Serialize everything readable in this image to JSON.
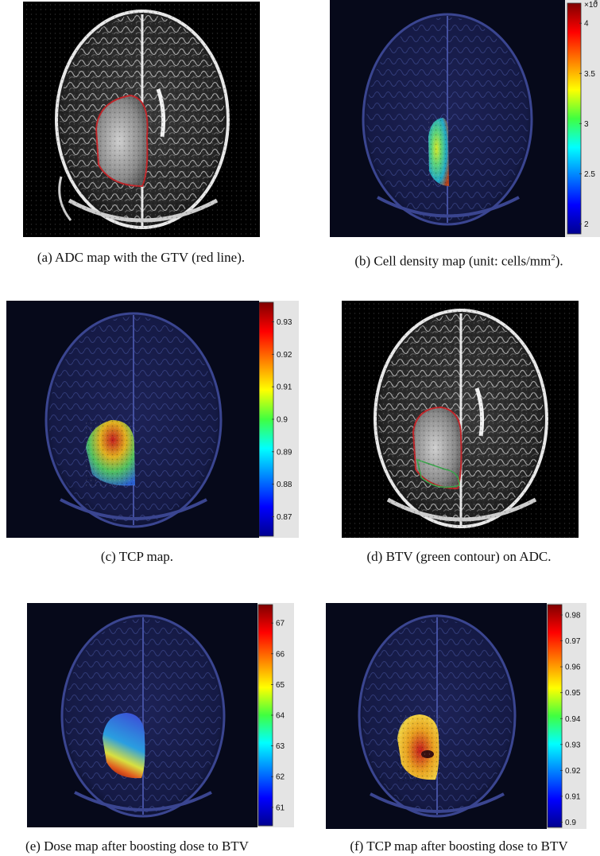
{
  "panels": [
    {
      "id": "a",
      "caption": "(a) ADC map with the GTV (red line).",
      "caption_sup": "",
      "caption_tail": "",
      "colorbar": null
    },
    {
      "id": "b",
      "caption": "(b) Cell density map (unit: cells/mm",
      "caption_sup": "2",
      "caption_tail": ").",
      "colorbar": {
        "exponent_label": "×10",
        "ticks": [
          "4",
          "3.5",
          "3",
          "2.5",
          "2"
        ],
        "range": [
          1.9,
          4.2
        ]
      }
    },
    {
      "id": "c",
      "caption": "(c) TCP map.",
      "caption_sup": "",
      "caption_tail": "",
      "colorbar": {
        "exponent_label": "",
        "ticks": [
          "0.93",
          "0.92",
          "0.91",
          "0.9",
          "0.89",
          "0.88",
          "0.87"
        ],
        "range": [
          0.864,
          0.936
        ]
      }
    },
    {
      "id": "d",
      "caption": "(d) BTV (green contour) on ADC.",
      "caption_sup": "",
      "caption_tail": "",
      "colorbar": null
    },
    {
      "id": "e",
      "caption": "(e) Dose map after boosting dose to BTV",
      "caption_sup": "",
      "caption_tail": "",
      "colorbar": {
        "exponent_label": "",
        "ticks": [
          "67",
          "66",
          "65",
          "64",
          "63",
          "62",
          "61"
        ],
        "range": [
          60.4,
          67.6
        ]
      }
    },
    {
      "id": "f",
      "caption": "(f) TCP map after boosting dose to BTV",
      "caption_sup": "",
      "caption_tail": "",
      "colorbar": {
        "exponent_label": "",
        "ticks": [
          "0.98",
          "0.97",
          "0.96",
          "0.95",
          "0.94",
          "0.93",
          "0.92",
          "0.91",
          "0.9"
        ],
        "range": [
          0.898,
          0.984
        ]
      }
    }
  ],
  "colors": {
    "gtv_contour": "#c0262a",
    "btv_contour": "#3aa24a",
    "background_dark": "#06091a"
  }
}
